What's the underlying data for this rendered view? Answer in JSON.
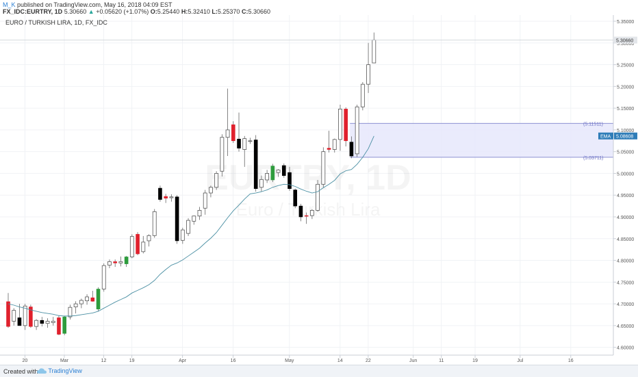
{
  "header": {
    "author": "M_K",
    "published": "published on TradingView.com, May 16, 2018 04:09 EST",
    "symbol": "FX_IDC:EURTRY, 1D",
    "last": "5.30660",
    "change": "+0.05620 (+1.07%)",
    "o_label": "O:",
    "o": "5.25440",
    "h_label": "H:",
    "h": "5.32410",
    "l_label": "L:",
    "l": "5.25370",
    "c_label": "C:",
    "c": "5.30660"
  },
  "chart_data": {
    "type": "candlestick",
    "title": "EURO / TURKISH LIRA, 1D, FX_IDC",
    "watermark_symbol": "EURTRY, 1D",
    "watermark_name": "Euro / Turkish Lira",
    "ylim": [
      4.59,
      5.35
    ],
    "y_ticks": [
      "5.35000",
      "5.30000",
      "5.25000",
      "5.20000",
      "5.15000",
      "5.10000",
      "5.05000",
      "5.00000",
      "4.95000",
      "4.90000",
      "4.85000",
      "4.80000",
      "4.75000",
      "4.70000",
      "4.65000",
      "4.60000"
    ],
    "x_labels": [
      {
        "label": "20",
        "index": 2
      },
      {
        "label": "Mar",
        "index": 9
      },
      {
        "label": "12",
        "index": 16
      },
      {
        "label": "19",
        "index": 21
      },
      {
        "label": "Apr",
        "index": 30
      },
      {
        "label": "16",
        "index": 39
      },
      {
        "label": "May",
        "index": 49
      },
      {
        "label": "14",
        "index": 58
      },
      {
        "label": "22",
        "index": 63
      },
      {
        "label": "Jun",
        "index": 71
      },
      {
        "label": "11",
        "index": 76
      },
      {
        "label": "19",
        "index": 82
      },
      {
        "label": "Jul",
        "index": 90
      },
      {
        "label": "16",
        "index": 99
      }
    ],
    "x_slots": 106,
    "candles": [
      {
        "o": 4.705,
        "h": 4.725,
        "l": 4.645,
        "c": 4.648,
        "color": "red"
      },
      {
        "o": 4.66,
        "h": 4.69,
        "l": 4.65,
        "c": 4.685,
        "color": "hollow"
      },
      {
        "o": 4.668,
        "h": 4.7,
        "l": 4.65,
        "c": 4.65,
        "color": "black"
      },
      {
        "o": 4.65,
        "h": 4.7,
        "l": 4.64,
        "c": 4.695,
        "color": "hollow"
      },
      {
        "o": 4.693,
        "h": 4.698,
        "l": 4.645,
        "c": 4.648,
        "color": "red"
      },
      {
        "o": 4.648,
        "h": 4.665,
        "l": 4.64,
        "c": 4.662,
        "color": "hollow"
      },
      {
        "o": 4.662,
        "h": 4.67,
        "l": 4.648,
        "c": 4.655,
        "color": "black"
      },
      {
        "o": 4.655,
        "h": 4.667,
        "l": 4.645,
        "c": 4.66,
        "color": "hollow"
      },
      {
        "o": 4.66,
        "h": 4.67,
        "l": 4.65,
        "c": 4.657,
        "color": "hollow"
      },
      {
        "o": 4.668,
        "h": 4.673,
        "l": 4.628,
        "c": 4.63,
        "color": "red"
      },
      {
        "o": 4.632,
        "h": 4.672,
        "l": 4.628,
        "c": 4.67,
        "color": "green"
      },
      {
        "o": 4.67,
        "h": 4.698,
        "l": 4.664,
        "c": 4.692,
        "color": "hollow"
      },
      {
        "o": 4.693,
        "h": 4.706,
        "l": 4.678,
        "c": 4.7,
        "color": "hollow"
      },
      {
        "o": 4.7,
        "h": 4.712,
        "l": 4.69,
        "c": 4.708,
        "color": "hollow"
      },
      {
        "o": 4.707,
        "h": 4.722,
        "l": 4.698,
        "c": 4.716,
        "color": "hollow"
      },
      {
        "o": 4.714,
        "h": 4.73,
        "l": 4.705,
        "c": 4.706,
        "color": "red"
      },
      {
        "o": 4.688,
        "h": 4.738,
        "l": 4.683,
        "c": 4.734,
        "color": "green"
      },
      {
        "o": 4.734,
        "h": 4.793,
        "l": 4.728,
        "c": 4.788,
        "color": "hollow"
      },
      {
        "o": 4.789,
        "h": 4.802,
        "l": 4.782,
        "c": 4.797,
        "color": "hollow"
      },
      {
        "o": 4.797,
        "h": 4.802,
        "l": 4.785,
        "c": 4.794,
        "color": "red"
      },
      {
        "o": 4.794,
        "h": 4.809,
        "l": 4.786,
        "c": 4.797,
        "color": "hollow"
      },
      {
        "o": 4.792,
        "h": 4.81,
        "l": 4.785,
        "c": 4.808,
        "color": "green"
      },
      {
        "o": 4.808,
        "h": 4.86,
        "l": 4.805,
        "c": 4.855,
        "color": "hollow"
      },
      {
        "o": 4.86,
        "h": 4.865,
        "l": 4.812,
        "c": 4.815,
        "color": "red"
      },
      {
        "o": 4.82,
        "h": 4.856,
        "l": 4.816,
        "c": 4.842,
        "color": "hollow"
      },
      {
        "o": 4.845,
        "h": 4.86,
        "l": 4.832,
        "c": 4.857,
        "color": "hollow"
      },
      {
        "o": 4.857,
        "h": 4.918,
        "l": 4.852,
        "c": 4.912,
        "color": "hollow"
      },
      {
        "o": 4.966,
        "h": 4.972,
        "l": 4.935,
        "c": 4.94,
        "color": "black"
      },
      {
        "o": 4.943,
        "h": 4.953,
        "l": 4.932,
        "c": 4.947,
        "color": "red"
      },
      {
        "o": 4.944,
        "h": 4.952,
        "l": 4.935,
        "c": 4.946,
        "color": "hollow"
      },
      {
        "o": 4.946,
        "h": 4.95,
        "l": 4.838,
        "c": 4.845,
        "color": "black"
      },
      {
        "o": 4.846,
        "h": 4.875,
        "l": 4.838,
        "c": 4.87,
        "color": "hollow"
      },
      {
        "o": 4.862,
        "h": 4.897,
        "l": 4.856,
        "c": 4.892,
        "color": "hollow"
      },
      {
        "o": 4.89,
        "h": 4.903,
        "l": 4.882,
        "c": 4.902,
        "color": "hollow"
      },
      {
        "o": 4.902,
        "h": 4.923,
        "l": 4.893,
        "c": 4.915,
        "color": "hollow"
      },
      {
        "o": 4.92,
        "h": 4.962,
        "l": 4.905,
        "c": 4.955,
        "color": "hollow"
      },
      {
        "o": 4.955,
        "h": 4.972,
        "l": 4.945,
        "c": 4.968,
        "color": "hollow"
      },
      {
        "o": 4.968,
        "h": 5.005,
        "l": 4.962,
        "c": 5.0,
        "color": "hollow"
      },
      {
        "o": 5.005,
        "h": 5.09,
        "l": 4.993,
        "c": 5.083,
        "color": "hollow"
      },
      {
        "o": 5.083,
        "h": 5.195,
        "l": 5.04,
        "c": 5.1,
        "color": "hollow"
      },
      {
        "o": 5.112,
        "h": 5.12,
        "l": 5.07,
        "c": 5.075,
        "color": "red"
      },
      {
        "o": 5.079,
        "h": 5.14,
        "l": 5.05,
        "c": 5.058,
        "color": "black"
      },
      {
        "o": 5.055,
        "h": 5.086,
        "l": 5.015,
        "c": 5.08,
        "color": "hollow"
      },
      {
        "o": 5.075,
        "h": 5.082,
        "l": 5.068,
        "c": 5.075,
        "color": "hollow"
      },
      {
        "o": 5.077,
        "h": 5.088,
        "l": 4.958,
        "c": 4.965,
        "color": "black"
      },
      {
        "o": 4.968,
        "h": 4.995,
        "l": 4.958,
        "c": 4.986,
        "color": "hollow"
      },
      {
        "o": 4.985,
        "h": 5.008,
        "l": 4.978,
        "c": 5.0,
        "color": "hollow"
      },
      {
        "o": 4.985,
        "h": 5.022,
        "l": 4.98,
        "c": 5.017,
        "color": "green"
      },
      {
        "o": 5.002,
        "h": 5.01,
        "l": 4.992,
        "c": 5.008,
        "color": "hollow"
      },
      {
        "o": 5.018,
        "h": 5.023,
        "l": 4.99,
        "c": 4.995,
        "color": "black"
      },
      {
        "o": 5.002,
        "h": 5.015,
        "l": 4.96,
        "c": 4.965,
        "color": "black"
      },
      {
        "o": 4.962,
        "h": 4.965,
        "l": 4.92,
        "c": 4.925,
        "color": "black"
      },
      {
        "o": 4.925,
        "h": 4.93,
        "l": 4.89,
        "c": 4.9,
        "color": "black"
      },
      {
        "o": 4.903,
        "h": 4.91,
        "l": 4.884,
        "c": 4.903,
        "color": "red"
      },
      {
        "o": 4.903,
        "h": 4.918,
        "l": 4.895,
        "c": 4.915,
        "color": "hollow"
      },
      {
        "o": 4.915,
        "h": 4.985,
        "l": 4.912,
        "c": 4.975,
        "color": "hollow"
      },
      {
        "o": 4.975,
        "h": 5.06,
        "l": 4.968,
        "c": 5.05,
        "color": "hollow"
      },
      {
        "o": 5.055,
        "h": 5.098,
        "l": 5.048,
        "c": 5.058,
        "color": "red"
      },
      {
        "o": 5.055,
        "h": 5.08,
        "l": 5.048,
        "c": 5.078,
        "color": "hollow"
      },
      {
        "o": 5.078,
        "h": 5.158,
        "l": 5.052,
        "c": 5.148,
        "color": "hollow"
      },
      {
        "o": 5.148,
        "h": 5.152,
        "l": 5.062,
        "c": 5.075,
        "color": "red"
      },
      {
        "o": 5.072,
        "h": 5.085,
        "l": 5.035,
        "c": 5.04,
        "color": "black"
      },
      {
        "o": 5.045,
        "h": 5.158,
        "l": 5.038,
        "c": 5.153,
        "color": "hollow"
      },
      {
        "o": 5.153,
        "h": 5.21,
        "l": 5.145,
        "c": 5.205,
        "color": "hollow"
      },
      {
        "o": 5.205,
        "h": 5.3,
        "l": 5.185,
        "c": 5.25,
        "color": "hollow"
      },
      {
        "o": 5.254,
        "h": 5.324,
        "l": 5.254,
        "c": 5.307,
        "color": "hollow"
      }
    ],
    "candle_slots": [
      0,
      1,
      2,
      3,
      4,
      5,
      6,
      7,
      8,
      9,
      10,
      11,
      12,
      13,
      14,
      15,
      16,
      17,
      18,
      19,
      20,
      21,
      22,
      23,
      24,
      25,
      26,
      27,
      28,
      29,
      30,
      31,
      32,
      33,
      34,
      35,
      36,
      37,
      38,
      39,
      40,
      41,
      42,
      43,
      44,
      45,
      46,
      47,
      48,
      49,
      50,
      51,
      52,
      53,
      54,
      55,
      56,
      57,
      58,
      59,
      60,
      61,
      62,
      63,
      64,
      65
    ],
    "ema": {
      "name": "EMA",
      "value": "5.08608",
      "color": "#4a8fa3",
      "values": [
        4.7,
        4.697,
        4.693,
        4.69,
        4.686,
        4.683,
        4.68,
        4.678,
        4.676,
        4.673,
        4.672,
        4.672,
        4.673,
        4.675,
        4.677,
        4.679,
        4.683,
        4.69,
        4.697,
        4.704,
        4.71,
        4.716,
        4.725,
        4.731,
        4.737,
        4.744,
        4.754,
        4.768,
        4.779,
        4.789,
        4.794,
        4.801,
        4.81,
        4.819,
        4.828,
        4.84,
        4.851,
        4.864,
        4.881,
        4.898,
        4.914,
        4.927,
        4.941,
        4.953,
        4.955,
        4.958,
        4.962,
        4.968,
        4.972,
        4.975,
        4.974,
        4.97,
        4.964,
        4.959,
        4.955,
        4.958,
        4.967,
        4.975,
        4.984,
        4.999,
        5.006,
        5.009,
        5.021,
        5.037,
        5.057,
        5.086
      ]
    },
    "box": {
      "upper": 5.11511,
      "upper_label": "5.11511",
      "lower": 5.03711,
      "lower_label": "5.03711",
      "start_index": 60
    },
    "last_price": {
      "value": 5.3066,
      "label": "5.30660"
    },
    "colors": {
      "up": "#26a69a",
      "red": "#e0212d",
      "green": "#2e9c3d",
      "black": "#000000",
      "box_fill": "#e6e8fc",
      "box_line": "#6b70c4"
    }
  },
  "footer": {
    "created_with": "Created with",
    "brand": "TradingView"
  }
}
